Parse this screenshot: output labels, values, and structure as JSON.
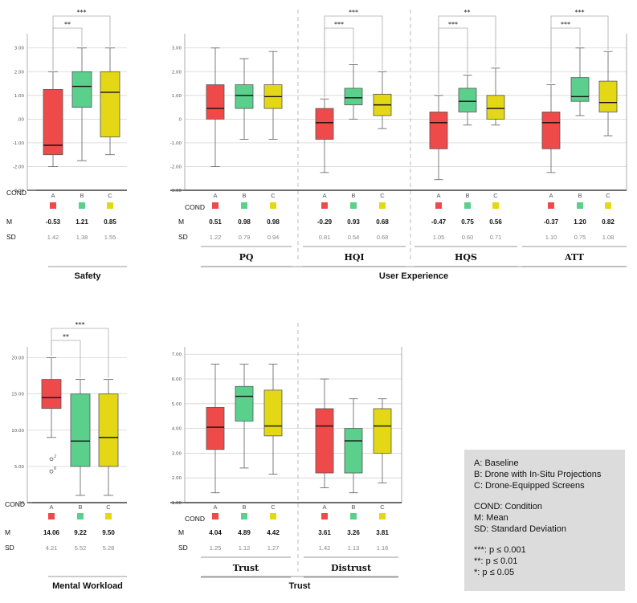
{
  "colors": {
    "A": "#ef4a4a",
    "B": "#5bcf8c",
    "C": "#e3d716",
    "whisker": "#6e6e6e",
    "grid": "#d4d4d4"
  },
  "labels": {
    "cond": "COND",
    "m": "M",
    "sd": "SD"
  },
  "chart_data": [
    {
      "id": "safety",
      "type": "boxplot",
      "group_title": "Safety",
      "yticks": [
        -3,
        -2,
        -1,
        0,
        1,
        2,
        3
      ],
      "ytick_labels": [
        "-3.00",
        "-2.00",
        "-1.00",
        ".00",
        "1.00",
        "2.00",
        "3.00"
      ],
      "ylim": [
        -3.0,
        3.6
      ],
      "subgroups": [
        {
          "label": "",
          "categories": [
            "A",
            "B",
            "C"
          ],
          "boxes": [
            {
              "cond": "A",
              "min": -2.0,
              "q1": -1.5,
              "median": -1.1,
              "q3": 1.25,
              "max": 2.0
            },
            {
              "cond": "B",
              "min": -1.75,
              "q1": 0.5,
              "median": 1.38,
              "q3": 2.0,
              "max": 3.0
            },
            {
              "cond": "C",
              "min": -1.5,
              "q1": -0.75,
              "median": 1.13,
              "q3": 2.0,
              "max": 3.0
            }
          ],
          "M": [
            "-0.53",
            "1.21",
            "0.85"
          ],
          "SD": [
            "1.42",
            "1.38",
            "1.55"
          ],
          "sig": [
            {
              "from": 0,
              "to": 1,
              "label": "**"
            },
            {
              "from": 0,
              "to": 2,
              "label": "***"
            }
          ]
        }
      ]
    },
    {
      "id": "ux",
      "type": "boxplot",
      "group_title": "User Experience",
      "yticks": [
        -3,
        -2,
        -1,
        0,
        1,
        2,
        3
      ],
      "ytick_labels": [
        "-3.00",
        "-2.00",
        "-1.00",
        "0",
        "1.00",
        "2.00",
        "3.00"
      ],
      "ylim": [
        -3.0,
        3.6
      ],
      "subgroups": [
        {
          "label": "PQ",
          "categories": [
            "A",
            "B",
            "C"
          ],
          "boxes": [
            {
              "cond": "A",
              "min": -2.0,
              "q1": 0.0,
              "median": 0.45,
              "q3": 1.45,
              "max": 3.0
            },
            {
              "cond": "B",
              "min": -0.85,
              "q1": 0.45,
              "median": 1.0,
              "q3": 1.45,
              "max": 2.55
            },
            {
              "cond": "C",
              "min": -0.85,
              "q1": 0.45,
              "median": 0.95,
              "q3": 1.45,
              "max": 2.85
            }
          ],
          "M": [
            "0.51",
            "0.98",
            "0.98"
          ],
          "SD": [
            "1.22",
            "0.79",
            "0.94"
          ],
          "sig": []
        },
        {
          "label": "HQI",
          "categories": [
            "A",
            "B",
            "C"
          ],
          "boxes": [
            {
              "cond": "A",
              "min": -2.25,
              "q1": -0.85,
              "median": -0.15,
              "q3": 0.45,
              "max": 0.85
            },
            {
              "cond": "B",
              "min": 0.0,
              "q1": 0.6,
              "median": 0.9,
              "q3": 1.3,
              "max": 2.3
            },
            {
              "cond": "C",
              "min": -0.4,
              "q1": 0.15,
              "median": 0.6,
              "q3": 1.05,
              "max": 2.0
            }
          ],
          "M": [
            "-0.29",
            "0.93",
            "0.68"
          ],
          "SD": [
            "0.81",
            "0.54",
            "0.68"
          ],
          "sig": [
            {
              "from": 0,
              "to": 1,
              "label": "***"
            },
            {
              "from": 0,
              "to": 2,
              "label": "***"
            }
          ]
        },
        {
          "label": "HQS",
          "categories": [
            "A",
            "B",
            "C"
          ],
          "boxes": [
            {
              "cond": "A",
              "min": -2.55,
              "q1": -1.25,
              "median": -0.15,
              "q3": 0.3,
              "max": 1.0
            },
            {
              "cond": "B",
              "min": -0.25,
              "q1": 0.3,
              "median": 0.75,
              "q3": 1.3,
              "max": 1.85
            },
            {
              "cond": "C",
              "min": -0.25,
              "q1": 0.0,
              "median": 0.45,
              "q3": 1.0,
              "max": 2.15
            }
          ],
          "M": [
            "-0.47",
            "0.75",
            "0.56"
          ],
          "SD": [
            "1.05",
            "0.60",
            "0.71"
          ],
          "sig": [
            {
              "from": 0,
              "to": 1,
              "label": "***"
            },
            {
              "from": 0,
              "to": 2,
              "label": "**"
            }
          ]
        },
        {
          "label": "ATT",
          "categories": [
            "A",
            "B",
            "C"
          ],
          "boxes": [
            {
              "cond": "A",
              "min": -2.25,
              "q1": -1.25,
              "median": -0.15,
              "q3": 0.3,
              "max": 1.45
            },
            {
              "cond": "B",
              "min": 0.15,
              "q1": 0.75,
              "median": 0.95,
              "q3": 1.75,
              "max": 3.0
            },
            {
              "cond": "C",
              "min": -0.7,
              "q1": 0.3,
              "median": 0.7,
              "q3": 1.6,
              "max": 2.85
            }
          ],
          "M": [
            "-0.37",
            "1.20",
            "0.82"
          ],
          "SD": [
            "1.10",
            "0.75",
            "1.08"
          ],
          "sig": [
            {
              "from": 0,
              "to": 1,
              "label": "***"
            },
            {
              "from": 0,
              "to": 2,
              "label": "***"
            }
          ]
        }
      ]
    },
    {
      "id": "mw",
      "type": "boxplot",
      "group_title": "Mental Workload",
      "yticks": [
        0,
        5,
        10,
        15,
        20
      ],
      "ytick_labels": [
        ".00",
        "5.00",
        "10.00",
        "15.00",
        "20.00"
      ],
      "ylim": [
        0,
        21.5
      ],
      "subgroups": [
        {
          "label": "",
          "categories": [
            "A",
            "B",
            "C"
          ],
          "boxes": [
            {
              "cond": "A",
              "min": 9.0,
              "q1": 13.0,
              "median": 14.5,
              "q3": 17.0,
              "max": 20.0,
              "outliers": [
                {
                  "value": 6.0,
                  "label": "2"
                },
                {
                  "value": 4.3,
                  "label": "6"
                }
              ]
            },
            {
              "cond": "B",
              "min": 1.0,
              "q1": 5.0,
              "median": 8.5,
              "q3": 15.0,
              "max": 17.0
            },
            {
              "cond": "C",
              "min": 1.0,
              "q1": 5.0,
              "median": 9.0,
              "q3": 15.0,
              "max": 17.0
            }
          ],
          "M": [
            "14.06",
            "9.22",
            "9.50"
          ],
          "SD": [
            "4.21",
            "5.52",
            "5.28"
          ],
          "sig": [
            {
              "from": 0,
              "to": 1,
              "label": "**"
            },
            {
              "from": 0,
              "to": 2,
              "label": "***"
            }
          ]
        }
      ]
    },
    {
      "id": "trust",
      "type": "boxplot",
      "group_title": "Trust",
      "yticks": [
        1,
        2,
        3,
        4,
        5,
        6,
        7
      ],
      "ytick_labels": [
        "1.00",
        "2.00",
        "3.00",
        "4.00",
        "5.00",
        "6.00",
        "7.00"
      ],
      "ylim": [
        1.0,
        7.3
      ],
      "subgroups": [
        {
          "label": "Trust",
          "categories": [
            "A",
            "B",
            "C"
          ],
          "boxes": [
            {
              "cond": "A",
              "min": 1.4,
              "q1": 3.15,
              "median": 4.05,
              "q3": 4.85,
              "max": 6.6
            },
            {
              "cond": "B",
              "min": 2.4,
              "q1": 4.3,
              "median": 5.3,
              "q3": 5.7,
              "max": 6.6
            },
            {
              "cond": "C",
              "min": 2.15,
              "q1": 3.7,
              "median": 4.1,
              "q3": 5.55,
              "max": 6.6
            }
          ],
          "M": [
            "4.04",
            "4.89",
            "4.42"
          ],
          "SD": [
            "1.25",
            "1.12",
            "1.27"
          ],
          "sig": []
        },
        {
          "label": "Distrust",
          "categories": [
            "A",
            "B",
            "C"
          ],
          "boxes": [
            {
              "cond": "A",
              "min": 1.6,
              "q1": 2.2,
              "median": 4.1,
              "q3": 4.8,
              "max": 6.0
            },
            {
              "cond": "B",
              "min": 1.4,
              "q1": 2.2,
              "median": 3.5,
              "q3": 4.0,
              "max": 5.2
            },
            {
              "cond": "C",
              "min": 1.8,
              "q1": 3.0,
              "median": 4.1,
              "q3": 4.8,
              "max": 5.2
            }
          ],
          "M": [
            "3.61",
            "3.26",
            "3.81"
          ],
          "SD": [
            "1.42",
            "1.13",
            "1.16"
          ],
          "sig": []
        }
      ]
    }
  ],
  "legend": {
    "conditions": [
      "A: Baseline",
      "B: Drone with In-Situ Projections",
      "C: Drone-Equipped Screens"
    ],
    "abbreviations": [
      "COND: Condition",
      "M: Mean",
      "SD: Standard Deviation"
    ],
    "significance": [
      "***: p ≤ 0.001",
      "**: p ≤ 0.01",
      "*: p ≤ 0.05"
    ]
  }
}
